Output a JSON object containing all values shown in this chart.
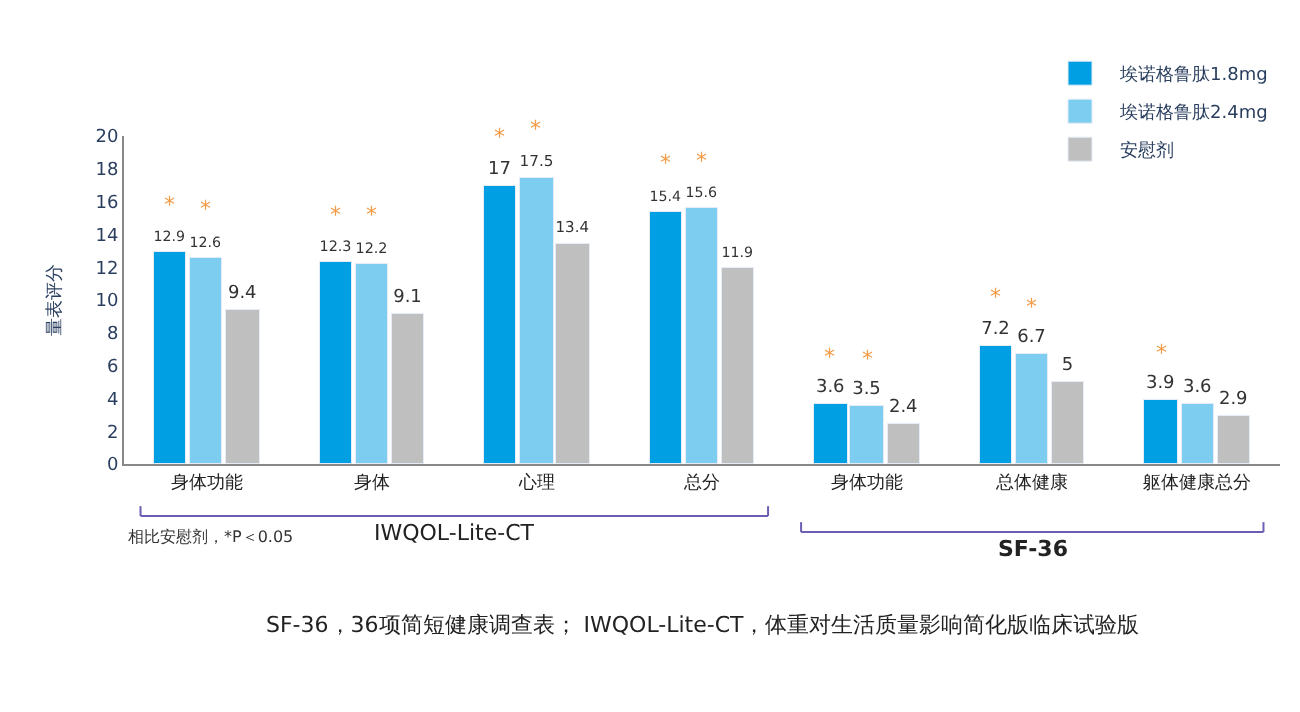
{
  "chart_data": {
    "type": "bar",
    "ylabel": "量表评分",
    "categories": [
      "身体功能",
      "身体",
      "心理",
      "总分",
      "身体功能",
      "总体健康",
      "躯体健康总分"
    ],
    "series": [
      {
        "name": "埃诺格鲁肽1.8mg",
        "color": "#009fe3",
        "values": [
          12.9,
          12.3,
          17,
          15.4,
          3.6,
          7.2,
          3.9
        ]
      },
      {
        "name": "埃诺格鲁肽2.4mg",
        "color": "#7dcdf0",
        "values": [
          12.6,
          12.2,
          17.5,
          15.6,
          3.5,
          6.7,
          3.6
        ]
      },
      {
        "name": "安慰剂",
        "color": "#bfbfbf",
        "values": [
          9.4,
          9.1,
          13.4,
          11.9,
          2.4,
          5,
          2.9
        ]
      }
    ],
    "ylim": [
      0,
      20
    ],
    "yticks": [
      0,
      2,
      4,
      6,
      8,
      10,
      12,
      14,
      16,
      18,
      20
    ],
    "legend": "top right",
    "data_labels": true,
    "annotations": [
      {
        "text": "*",
        "x": "身体功能",
        "y": 12.9
      },
      {
        "text": "*",
        "x": "身体功能",
        "y": 12.6
      },
      {
        "text": "*",
        "x": "身体",
        "y": 12.3
      },
      {
        "text": "*",
        "x": "身体",
        "y": 12.2
      },
      {
        "text": "*",
        "x": "心理",
        "y": 17
      },
      {
        "text": "*",
        "x": "心理",
        "y": 17.5
      },
      {
        "text": "*",
        "x": "总分",
        "y": 15.4
      },
      {
        "text": "*",
        "x": "总分",
        "y": 15.6
      },
      {
        "text": "*",
        "y": 3.6
      },
      {
        "text": "*",
        "y": 3.5
      },
      {
        "text": "*",
        "x": "总体健康",
        "y": 7.2
      },
      {
        "text": "*",
        "x": "总体健康",
        "y": 6.7
      },
      {
        "text": "*",
        "x": "躯体健康总分",
        "y": 3.9
      },
      "IWQOL-Lite-CT",
      "SF-36",
      "相比安慰剂，*P＜0.05",
      "SF-36，36项简短健康调查表； IWQOL-Lite-CT，体重对生活质量影响简化版临床试验版"
    ]
  }
}
